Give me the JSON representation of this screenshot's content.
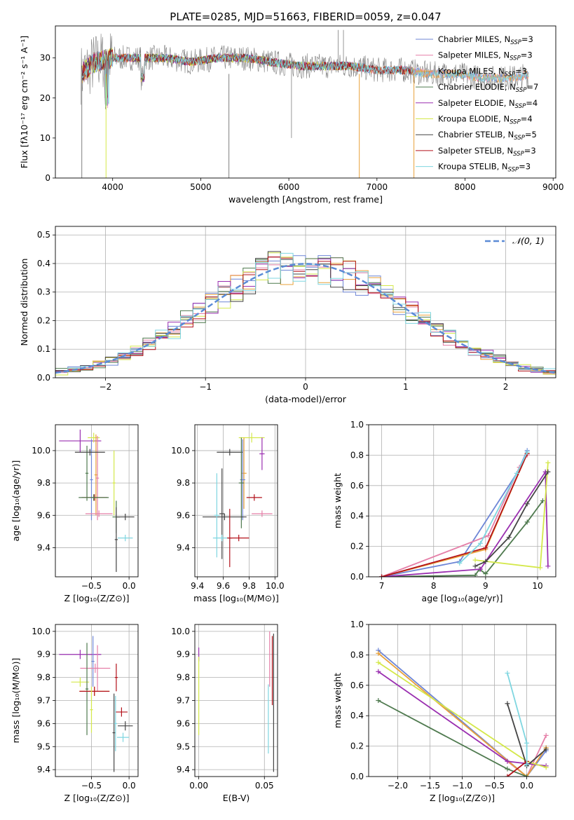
{
  "suptitle": "PLATE=0285, MJD=51663, FIBERID=0059, z=0.047",
  "colors": {
    "Chabrier MILES": "#6e86d6",
    "Salpeter MILES": "#e57fa8",
    "Kroupa MILES": "#e8a13a",
    "Chabrier ELODIE": "#4f7a4f",
    "Salpeter ELODIE": "#9a2fb0",
    "Kroupa ELODIE": "#d4e84a",
    "Chabrier STELIB": "#444444",
    "Salpeter STELIB": "#b3121b",
    "Kroupa STELIB": "#7fd6e0",
    "data": "#7f7f7f",
    "normal": "#5b8bd6"
  },
  "chart_data": [
    {
      "id": "spectrum",
      "type": "line",
      "title": "PLATE=0285, MJD=51663, FIBERID=0059, z=0.047",
      "xlabel": "wavelength [Angstrom, rest frame]",
      "ylabel": "Flux [fλ10⁻¹⁷ erg cm⁻² s⁻¹ A⁻¹]",
      "xlim": [
        3350,
        9030
      ],
      "ylim": [
        0,
        38
      ],
      "xticks": [
        4000,
        5000,
        6000,
        7000,
        8000,
        9000
      ],
      "yticks": [
        0,
        10,
        20,
        30
      ],
      "grid": false,
      "legend_position": "top-right",
      "legend": [
        {
          "label": "Chabrier MILES, N",
          "sub": "SSP",
          "suffix": "=3",
          "color": "#6e86d6"
        },
        {
          "label": "Salpeter MILES, N",
          "sub": "SSP",
          "suffix": "=3",
          "color": "#e57fa8"
        },
        {
          "label": "Kroupa MILES, N",
          "sub": "SSP",
          "suffix": "=3",
          "color": "#e8a13a"
        },
        {
          "label": "Chabrier ELODIE, N",
          "sub": "SSP",
          "suffix": "=7",
          "color": "#4f7a4f"
        },
        {
          "label": "Salpeter ELODIE, N",
          "sub": "SSP",
          "suffix": "=4",
          "color": "#9a2fb0"
        },
        {
          "label": "Kroupa ELODIE, N",
          "sub": "SSP",
          "suffix": "=4",
          "color": "#d4e84a"
        },
        {
          "label": "Chabrier STELIB, N",
          "sub": "SSP",
          "suffix": "=5",
          "color": "#444444"
        },
        {
          "label": "Salpeter STELIB, N",
          "sub": "SSP",
          "suffix": "=3",
          "color": "#b3121b"
        },
        {
          "label": "Kroupa STELIB, N",
          "sub": "SSP",
          "suffix": "=3",
          "color": "#7fd6e0"
        }
      ],
      "series_approx": [
        {
          "name": "data",
          "x": [
            3650,
            3800,
            4000,
            4300,
            4600,
            4900,
            5200,
            5500,
            5800,
            6100,
            6400,
            6700,
            7000,
            7300,
            7600,
            7900,
            8200,
            8500,
            8800
          ],
          "y": [
            26,
            29,
            30,
            30,
            30,
            29,
            30,
            30,
            29,
            28,
            28,
            28,
            27,
            27,
            26,
            26,
            25,
            25,
            26
          ]
        }
      ]
    },
    {
      "id": "residuals",
      "type": "histogram",
      "xlabel": "(data-model)/error",
      "ylabel": "Normed distribution",
      "xlim": [
        -2.5,
        2.5
      ],
      "ylim": [
        0,
        0.53
      ],
      "xticks": [
        -2,
        -1,
        0,
        1,
        2
      ],
      "yticks": [
        0.0,
        0.1,
        0.2,
        0.3,
        0.4,
        0.5
      ],
      "grid": true,
      "legend_position": "top-right",
      "legend": [
        {
          "label": "𝒩(0, 1)",
          "color": "#5b8bd6",
          "style": "dashed"
        }
      ],
      "bin_edges_range": [
        -2.5,
        2.5
      ],
      "n_bins": 40,
      "reference_curve": "normal pdf mean 0 sd 1"
    },
    {
      "id": "age-vs-Z",
      "type": "errorbar",
      "xlabel": "Z [log₁₀(Z/Z⊙)]",
      "ylabel": "age  [log₁₀(age/yr)]",
      "xlim": [
        -0.98,
        0.12
      ],
      "ylim": [
        9.22,
        10.16
      ],
      "xticks": [
        -0.5,
        0.0
      ],
      "xticklabels": [
        "−0.5",
        "0.0"
      ],
      "yticks": [
        9.4,
        9.6,
        9.8,
        10.0
      ],
      "grid": true,
      "points": [
        {
          "series": "Salpeter ELODIE",
          "x": -0.65,
          "y": 10.06,
          "xerr": 0.28,
          "yerr": 0.07
        },
        {
          "series": "Kroupa ELODIE",
          "x": -0.47,
          "y": 10.08,
          "xerr": 0.08,
          "yerr": 0.03
        },
        {
          "series": "Kroupa MILES",
          "x": -0.44,
          "y": 9.85,
          "xerr": 0.02,
          "yerr": 0.25
        },
        {
          "series": "Salpeter MILES",
          "x": -0.42,
          "y": 9.83,
          "xerr": 0.02,
          "yerr": 0.26
        },
        {
          "series": "Chabrier ELODIE",
          "x": -0.56,
          "y": 9.86,
          "xerr": 0.02,
          "yerr": 0.17
        },
        {
          "series": "Chabrier MILES",
          "x": -0.5,
          "y": 9.82,
          "xerr": 0.02,
          "yerr": 0.25
        },
        {
          "series": "Chabrier STELIB",
          "x": -0.52,
          "y": 9.99,
          "xerr": 0.2,
          "yerr": 0.02
        },
        {
          "series": "Salpeter STELIB",
          "x": -0.46,
          "y": 9.71,
          "xerr": 0.17,
          "yerr": 0.02
        },
        {
          "series": "Chabrier ELODIE",
          "x": -0.47,
          "y": 9.71,
          "xerr": 0.2,
          "yerr": 0.02
        },
        {
          "series": "Salpeter MILES",
          "x": -0.4,
          "y": 9.61,
          "xerr": 0.18,
          "yerr": 0.02
        },
        {
          "series": "Chabrier ELODIE",
          "x": -0.17,
          "y": 9.59,
          "xerr": 0.05,
          "yerr": 0.1
        },
        {
          "series": "Chabrier STELIB",
          "x": -0.17,
          "y": 9.45,
          "xerr": 0.02,
          "yerr": 0.2
        },
        {
          "series": "Chabrier STELIB",
          "x": -0.05,
          "y": 9.59,
          "xerr": 0.12,
          "yerr": 0.02
        },
        {
          "series": "Kroupa STELIB",
          "x": -0.05,
          "y": 9.46,
          "xerr": 0.1,
          "yerr": 0.02
        },
        {
          "series": "Kroupa ELODIE",
          "x": -0.2,
          "y": 9.8,
          "xerr": 0.02,
          "yerr": 0.2
        }
      ]
    },
    {
      "id": "age-vs-mass",
      "type": "errorbar",
      "xlabel": "mass [log₁₀(M/M⊙)]",
      "ylabel": "",
      "xlim": [
        9.38,
        10.02
      ],
      "ylim": [
        9.22,
        10.16
      ],
      "xticks": [
        9.4,
        9.6,
        9.8,
        10.0
      ],
      "yticks": [
        9.4,
        9.6,
        9.8,
        10.0
      ],
      "grid": true,
      "points": [
        {
          "series": "Kroupa ELODIE",
          "x": 9.82,
          "y": 10.08,
          "xerr": 0.1,
          "yerr": 0.03
        },
        {
          "series": "Salpeter ELODIE",
          "x": 9.9,
          "y": 9.98,
          "xerr": 0.02,
          "yerr": 0.1
        },
        {
          "series": "Kroupa MILES",
          "x": 9.76,
          "y": 9.86,
          "xerr": 0.02,
          "yerr": 0.22
        },
        {
          "series": "Chabrier MILES",
          "x": 9.75,
          "y": 9.82,
          "xerr": 0.02,
          "yerr": 0.25
        },
        {
          "series": "Chabrier STELIB",
          "x": 9.65,
          "y": 9.99,
          "xerr": 0.1,
          "yerr": 0.02
        },
        {
          "series": "Chabrier ELODIE",
          "x": 9.74,
          "y": 9.8,
          "xerr": 0.02,
          "yerr": 0.28
        },
        {
          "series": "Salpeter STELIB",
          "x": 9.84,
          "y": 9.71,
          "xerr": 0.06,
          "yerr": 0.02
        },
        {
          "series": "Chabrier STELIB",
          "x": 9.59,
          "y": 9.61,
          "xerr": 0.02,
          "yerr": 0.28
        },
        {
          "series": "Chabrier STELIB",
          "x": 9.61,
          "y": 9.59,
          "xerr": 0.17,
          "yerr": 0.02
        },
        {
          "series": "Salpeter MILES",
          "x": 9.9,
          "y": 9.61,
          "xerr": 0.08,
          "yerr": 0.02
        },
        {
          "series": "Kroupa STELIB",
          "x": 9.55,
          "y": 9.6,
          "xerr": 0.02,
          "yerr": 0.26
        },
        {
          "series": "Kroupa STELIB",
          "x": 9.59,
          "y": 9.46,
          "xerr": 0.07,
          "yerr": 0.02
        },
        {
          "series": "Salpeter STELIB",
          "x": 9.65,
          "y": 9.46,
          "xerr": 0.02,
          "yerr": 0.18
        },
        {
          "series": "Salpeter STELIB",
          "x": 9.72,
          "y": 9.46,
          "xerr": 0.08,
          "yerr": 0.02
        }
      ]
    },
    {
      "id": "mass-weight-vs-age",
      "type": "line",
      "xlabel": "age  [log₁₀(age/yr)]",
      "ylabel": "mass weight",
      "xlim": [
        6.75,
        10.35
      ],
      "ylim": [
        0,
        1
      ],
      "xticks": [
        7,
        8,
        9,
        10
      ],
      "yticks": [
        0.0,
        0.2,
        0.4,
        0.6,
        0.8,
        1.0
      ],
      "grid": true,
      "series": [
        {
          "name": "Chabrier MILES",
          "x": [
            7.0,
            8.5,
            9.6,
            9.8
          ],
          "y": [
            0.0,
            0.1,
            0.68,
            0.83
          ]
        },
        {
          "name": "Salpeter MILES",
          "x": [
            7.0,
            9.05,
            9.65,
            9.8
          ],
          "y": [
            0.0,
            0.27,
            0.72,
            0.8
          ]
        },
        {
          "name": "Kroupa MILES",
          "x": [
            7.0,
            9.0,
            9.8
          ],
          "y": [
            0.0,
            0.18,
            0.81
          ]
        },
        {
          "name": "Chabrier ELODIE",
          "x": [
            7.0,
            8.8,
            8.88,
            9.0,
            9.8,
            10.1
          ],
          "y": [
            0.0,
            0.01,
            0.05,
            0.02,
            0.36,
            0.5
          ]
        },
        {
          "name": "Salpeter ELODIE",
          "x": [
            7.0,
            8.9,
            9.0,
            10.15,
            10.2
          ],
          "y": [
            0.0,
            0.05,
            0.1,
            0.69,
            0.07
          ]
        },
        {
          "name": "Kroupa ELODIE",
          "x": [
            8.8,
            10.05,
            10.2
          ],
          "y": [
            0.11,
            0.06,
            0.75
          ]
        },
        {
          "name": "Chabrier STELIB",
          "x": [
            8.8,
            9.0,
            9.45,
            9.8,
            10.2
          ],
          "y": [
            0.07,
            0.1,
            0.26,
            0.48,
            0.69
          ]
        },
        {
          "name": "Salpeter STELIB",
          "x": [
            7.0,
            9.0,
            9.8
          ],
          "y": [
            0.0,
            0.19,
            0.81
          ]
        },
        {
          "name": "Kroupa STELIB",
          "x": [
            8.5,
            8.9,
            9.6,
            9.8
          ],
          "y": [
            0.09,
            0.22,
            0.68,
            0.82
          ]
        }
      ]
    },
    {
      "id": "mass-vs-Z",
      "type": "errorbar",
      "xlabel": "Z [log₁₀(Z/Z⊙)]",
      "ylabel": "mass [log₁₀(M/M⊙)]",
      "xlim": [
        -0.98,
        0.12
      ],
      "ylim": [
        9.37,
        10.03
      ],
      "xticks": [
        -0.5,
        0.0
      ],
      "xticklabels": [
        "−0.5",
        "0.0"
      ],
      "yticks": [
        9.4,
        9.5,
        9.6,
        9.7,
        9.8,
        9.9,
        10.0
      ],
      "grid": true,
      "points": [
        {
          "series": "Salpeter ELODIE",
          "x": -0.65,
          "y": 9.9,
          "xerr": 0.28,
          "yerr": 0.02
        },
        {
          "series": "Chabrier MILES",
          "x": -0.48,
          "y": 9.87,
          "xerr": 0.02,
          "yerr": 0.11
        },
        {
          "series": "Salpeter MILES",
          "x": -0.45,
          "y": 9.84,
          "xerr": 0.2,
          "yerr": 0.02
        },
        {
          "series": "Salpeter MILES",
          "x": -0.42,
          "y": 9.84,
          "xerr": 0.02,
          "yerr": 0.1
        },
        {
          "series": "Kroupa ELODIE",
          "x": -0.65,
          "y": 9.78,
          "xerr": 0.12,
          "yerr": 0.02
        },
        {
          "series": "Chabrier ELODIE",
          "x": -0.56,
          "y": 9.75,
          "xerr": 0.02,
          "yerr": 0.2
        },
        {
          "series": "Kroupa MILES",
          "x": -0.46,
          "y": 9.74,
          "xerr": 0.2,
          "yerr": 0.02
        },
        {
          "series": "Salpeter STELIB",
          "x": -0.46,
          "y": 9.74,
          "xerr": 0.2,
          "yerr": 0.02
        },
        {
          "series": "Kroupa ELODIE",
          "x": -0.5,
          "y": 9.66,
          "xerr": 0.02,
          "yerr": 0.1
        },
        {
          "series": "Salpeter STELIB",
          "x": -0.17,
          "y": 9.8,
          "xerr": 0.02,
          "yerr": 0.06
        },
        {
          "series": "Chabrier STELIB",
          "x": -0.05,
          "y": 9.59,
          "xerr": 0.1,
          "yerr": 0.02
        },
        {
          "series": "Salpeter STELIB",
          "x": -0.1,
          "y": 9.65,
          "xerr": 0.08,
          "yerr": 0.02
        },
        {
          "series": "Kroupa STELIB",
          "x": -0.08,
          "y": 9.54,
          "xerr": 0.08,
          "yerr": 0.02
        },
        {
          "series": "Chabrier STELIB",
          "x": -0.2,
          "y": 9.56,
          "xerr": 0.02,
          "yerr": 0.17
        },
        {
          "series": "Kroupa STELIB",
          "x": -0.18,
          "y": 9.6,
          "xerr": 0.02,
          "yerr": 0.12
        }
      ]
    },
    {
      "id": "mass-vs-EBV",
      "type": "errorbar",
      "xlabel": "E(B-V)",
      "ylabel": "",
      "xlim": [
        -0.003,
        0.06
      ],
      "ylim": [
        9.37,
        10.03
      ],
      "xticks": [
        0.0,
        0.05
      ],
      "xticklabels": [
        "0.00",
        "0.05"
      ],
      "yticks": [
        9.4,
        9.5,
        9.6,
        9.7,
        9.8,
        9.9,
        10.0
      ],
      "grid": true,
      "points": [
        {
          "series": "Salpeter ELODIE",
          "x": 0.0,
          "y": 9.9,
          "xerr": 0.0,
          "yerr": 0.03
        },
        {
          "series": "Kroupa ELODIE",
          "x": 0.0,
          "y": 9.72,
          "xerr": 0.0,
          "yerr": 0.17
        },
        {
          "series": "Salpeter MILES",
          "x": 0.054,
          "y": 9.88,
          "xerr": 0.0,
          "yerr": 0.12
        },
        {
          "series": "Salpeter STELIB",
          "x": 0.056,
          "y": 9.83,
          "xerr": 0.0,
          "yerr": 0.15
        },
        {
          "series": "Kroupa STELIB",
          "x": 0.053,
          "y": 9.62,
          "xerr": 0.0,
          "yerr": 0.15
        },
        {
          "series": "Chabrier STELIB",
          "x": 0.057,
          "y": 9.69,
          "xerr": 0.0,
          "yerr": 0.3
        }
      ]
    },
    {
      "id": "mass-weight-vs-Z",
      "type": "line",
      "xlabel": "Z [log₁₀(Z/Z⊙)]",
      "ylabel": "mass weight",
      "xlim": [
        -2.45,
        0.45
      ],
      "ylim": [
        0,
        1
      ],
      "xticks": [
        -2.0,
        -1.5,
        -1.0,
        -0.5,
        0.0
      ],
      "xticklabels": [
        "−2.0",
        "−1.5",
        "−1.0",
        "−0.5",
        "0.0"
      ],
      "yticks": [
        0.0,
        0.2,
        0.4,
        0.6,
        0.8,
        1.0
      ],
      "grid": true,
      "series": [
        {
          "name": "Chabrier MILES",
          "x": [
            -2.3,
            0.0,
            0.3
          ],
          "y": [
            0.83,
            0.0,
            0.17
          ]
        },
        {
          "name": "Salpeter MILES",
          "x": [
            -0.3,
            0.0,
            0.3
          ],
          "y": [
            0.1,
            0.0,
            0.27
          ]
        },
        {
          "name": "Kroupa MILES",
          "x": [
            -2.3,
            0.0,
            0.3
          ],
          "y": [
            0.81,
            0.0,
            0.19
          ]
        },
        {
          "name": "Chabrier ELODIE",
          "x": [
            -2.3,
            -0.3,
            0.0
          ],
          "y": [
            0.5,
            0.05,
            0.0
          ]
        },
        {
          "name": "Salpeter ELODIE",
          "x": [
            -2.3,
            -0.3,
            0.3
          ],
          "y": [
            0.69,
            0.1,
            0.07
          ]
        },
        {
          "name": "Kroupa ELODIE",
          "x": [
            -2.3,
            0.0,
            0.3
          ],
          "y": [
            0.75,
            0.1,
            0.06
          ]
        },
        {
          "name": "Chabrier STELIB",
          "x": [
            -0.3,
            0.0,
            0.3
          ],
          "y": [
            0.48,
            0.07,
            0.18
          ]
        },
        {
          "name": "Salpeter STELIB",
          "x": [
            -0.3,
            0.0
          ],
          "y": [
            0.0,
            0.1
          ]
        },
        {
          "name": "Kroupa STELIB",
          "x": [
            -0.3,
            0.0,
            0.0
          ],
          "y": [
            0.68,
            0.22,
            0.08
          ]
        }
      ]
    }
  ]
}
